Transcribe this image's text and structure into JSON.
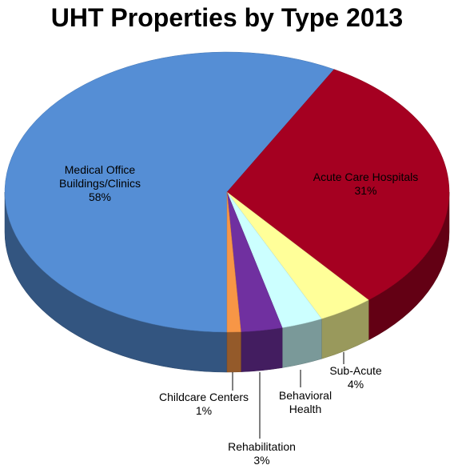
{
  "chart_data": {
    "type": "pie",
    "title": "UHT Properties by Type 2013",
    "categories": [
      "Medical Office Buildings/Clinics",
      "Acute Care Hospitals",
      "Sub-Acute",
      "Behavioral Health",
      "Rehabilitation",
      "Childcare Centers"
    ],
    "values": [
      58,
      31,
      4,
      3,
      3,
      1
    ],
    "value_labels": [
      "58%",
      "31%",
      "4%",
      null,
      "3%",
      "1%"
    ],
    "colors": [
      "#558ed5",
      "#a50021",
      "#ffff99",
      "#ccffff",
      "#7030a0",
      "#f79646"
    ]
  }
}
